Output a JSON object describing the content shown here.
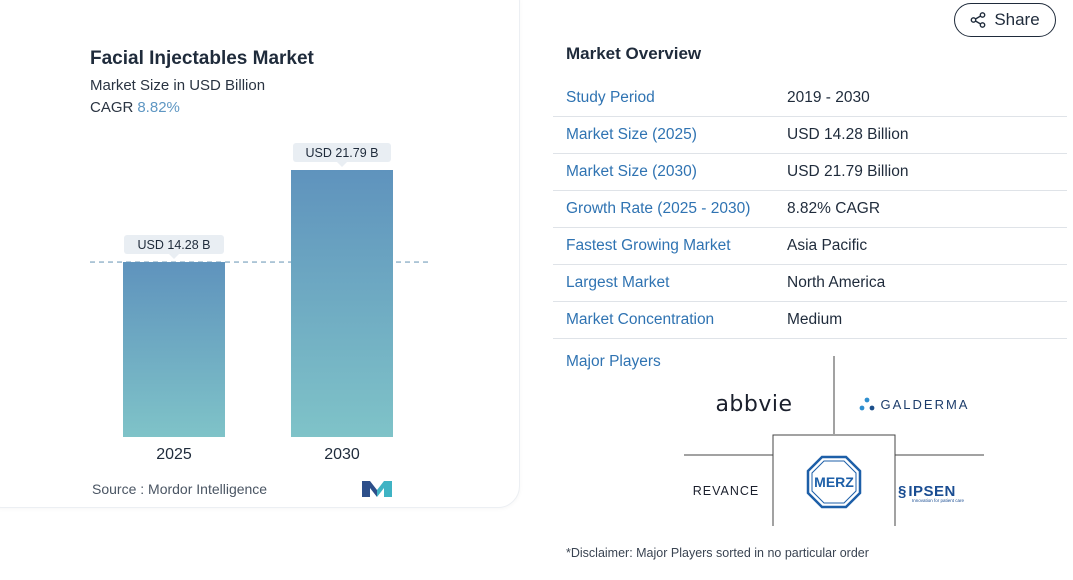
{
  "chart_data": {
    "type": "bar",
    "title": "Facial Injectables Market",
    "subtitle": "Market Size in USD Billion",
    "cagr_label": "CAGR",
    "cagr_value": "8.82%",
    "categories": [
      "2025",
      "2030"
    ],
    "values": [
      14.28,
      21.79
    ],
    "data_labels": [
      "USD 14.28 B",
      "USD 21.79 B"
    ],
    "ylim": [
      0,
      21.79
    ],
    "reference_line": 14.28,
    "bar_gradient": [
      "#5f93bd",
      "#7fc3c8"
    ],
    "source": "Source :  Mordor Intelligence"
  },
  "share": {
    "label": "Share",
    "icon": "share-icon"
  },
  "overview": {
    "title": "Market Overview",
    "rows": [
      {
        "label": "Study Period",
        "value": "2019 - 2030"
      },
      {
        "label": "Market Size (2025)",
        "value": "USD 14.28 Billion"
      },
      {
        "label": "Market Size (2030)",
        "value": "USD 21.79 Billion"
      },
      {
        "label": "Growth Rate (2025 - 2030)",
        "value": "8.82% CAGR"
      },
      {
        "label": "Fastest Growing Market",
        "value": "Asia Pacific"
      },
      {
        "label": "Largest Market",
        "value": "North America"
      },
      {
        "label": "Market Concentration",
        "value": "Medium"
      }
    ]
  },
  "major_players": {
    "title": "Major Players",
    "players": [
      "abbvie",
      "GALDERMA",
      "REVANCE",
      "MERZ",
      "IPSEN"
    ],
    "ipsen_tagline": "Innovation for patient care"
  },
  "disclaimer": "*Disclaimer: Major Players sorted in no particular order",
  "colors": {
    "accent": "#2f73b2",
    "bar_top": "#5f93bd",
    "bar_bottom": "#7fc3c8",
    "merz": "#1d5fa8"
  }
}
